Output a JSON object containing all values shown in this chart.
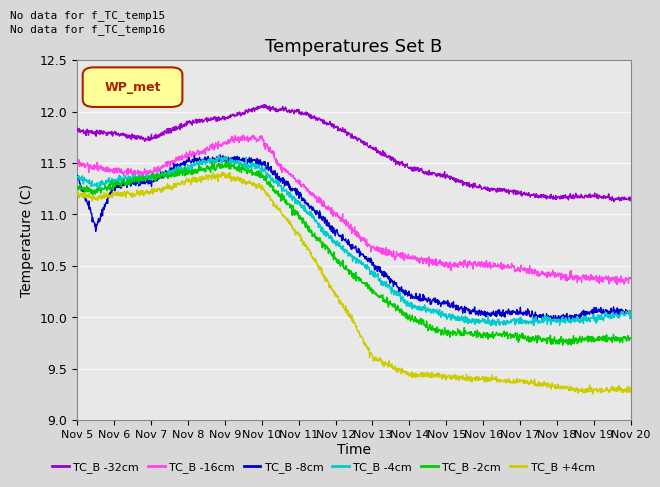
{
  "title": "Temperatures Set B",
  "xlabel": "Time",
  "ylabel": "Temperature (C)",
  "ylim": [
    9.0,
    12.5
  ],
  "yticks": [
    9.0,
    9.5,
    10.0,
    10.5,
    11.0,
    11.5,
    12.0,
    12.5
  ],
  "xlim": [
    0,
    15
  ],
  "xtick_labels": [
    "Nov 5",
    "Nov 6",
    "Nov 7",
    "Nov 8",
    "Nov 9",
    "Nov 10",
    "Nov 11",
    "Nov 12",
    "Nov 13",
    "Nov 14",
    "Nov 15",
    "Nov 16",
    "Nov 17",
    "Nov 18",
    "Nov 19",
    "Nov 20"
  ],
  "no_data_text": [
    "No data for f_TC_temp15",
    "No data for f_TC_temp16"
  ],
  "wp_met_label": "WP_met",
  "legend_entries": [
    "TC_B -32cm",
    "TC_B -16cm",
    "TC_B -8cm",
    "TC_B -4cm",
    "TC_B -2cm",
    "TC_B +4cm"
  ],
  "colors": {
    "TC_B_-32cm": "#9900cc",
    "TC_B_-16cm": "#ff44ee",
    "TC_B_-8cm": "#0000cc",
    "TC_B_-4cm": "#00cccc",
    "TC_B_-2cm": "#00cc00",
    "TC_B_+4cm": "#cccc00",
    "WP_met": "#aa2200"
  },
  "wp_met_bg": "#ffff99",
  "background_color": "#d8d8d8",
  "plot_bg_color": "#e8e8e8",
  "grid_color": "#f8f8f8",
  "title_fontsize": 13,
  "axis_fontsize": 10,
  "tick_fontsize": 9
}
